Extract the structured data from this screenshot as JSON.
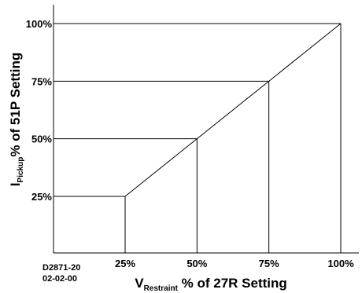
{
  "chart_data": {
    "type": "line",
    "series": [
      {
        "x": [
          0,
          25,
          50,
          75,
          100
        ],
        "y": [
          25,
          25,
          50,
          75,
          100
        ]
      }
    ],
    "xlim": [
      0,
      100
    ],
    "ylim": [
      0,
      100
    ],
    "x_ticks": [
      25,
      50,
      75,
      100
    ],
    "y_ticks": [
      25,
      50,
      75,
      100
    ],
    "x_tick_labels": [
      "25%",
      "50%",
      "75%",
      "100%"
    ],
    "y_tick_labels": [
      "25%",
      "50%",
      "75%",
      "100%"
    ],
    "xlabel": {
      "main": "V",
      "subscript": "Restraint",
      "rest": " % of 27R Setting"
    },
    "ylabel": {
      "main": "I",
      "subscript": "Pickup",
      "rest": "% of 51P Setting"
    },
    "grid": false,
    "guide_lines": "drop lines from each breakpoint to both axes",
    "annotation": [
      "D2871-20",
      "02-02-00"
    ]
  }
}
